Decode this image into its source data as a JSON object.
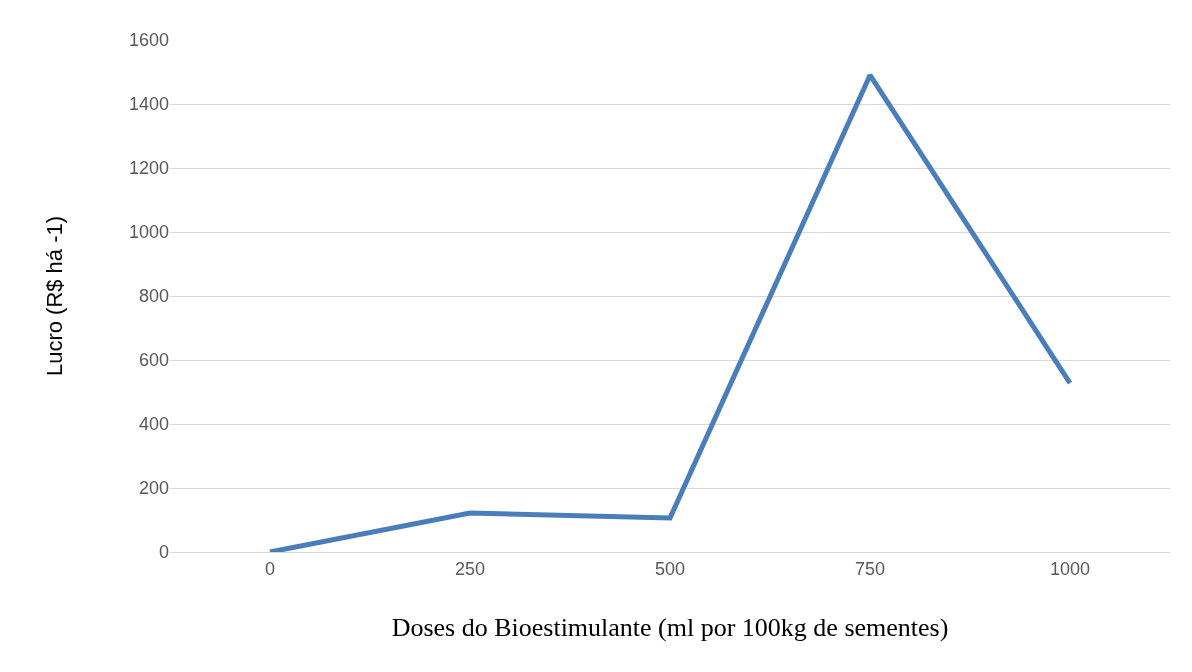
{
  "chart_data": {
    "type": "line",
    "xlabel": "Doses do Bioestimulante (ml por 100kg de sementes)",
    "ylabel": "Lucro (R$ há -1)",
    "categories": [
      "0",
      "250",
      "500",
      "750",
      "1000"
    ],
    "series": [
      {
        "color": "#4a7ebb",
        "values": [
          0,
          122,
          106,
          1490,
          528
        ]
      }
    ],
    "ylim": [
      0,
      1600
    ],
    "yticks": [
      0,
      200,
      400,
      600,
      800,
      1000,
      1200,
      1400,
      1600
    ],
    "grid": "y",
    "legend": false,
    "marker": "none",
    "line_style": "solid"
  }
}
